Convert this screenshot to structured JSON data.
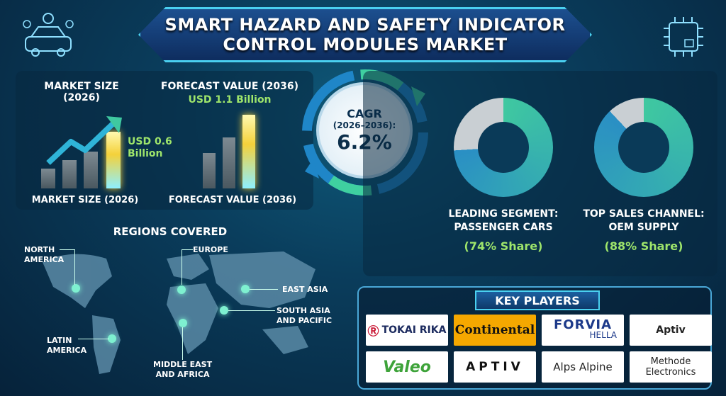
{
  "title": {
    "line1": "SMART HAZARD AND SAFETY INDICATOR",
    "line2": "CONTROL MODULES MARKET"
  },
  "market_size": {
    "heading": "MARKET SIZE",
    "year": "(2026)",
    "value": "USD 0.6",
    "value2": "Billion",
    "axis_label": "MARKET SIZE (2026)"
  },
  "forecast": {
    "heading": "FORECAST VALUE (2036)",
    "value": "USD 1.1 Billion",
    "axis_label": "FORECAST VALUE (2036)"
  },
  "cagr": {
    "label": "CAGR",
    "period": "(2026–2036):",
    "value": "6.2%"
  },
  "segment": {
    "line1": "LEADING SEGMENT:",
    "line2": "PASSENGER CARS",
    "share": "(74% Share)",
    "percent": 74
  },
  "channel": {
    "line1": "TOP SALES CHANNEL:",
    "line2": "OEM SUPPLY",
    "share": "(88% Share)",
    "percent": 88
  },
  "regions": {
    "heading": "REGIONS COVERED",
    "north_america": [
      "NORTH",
      "AMERICA"
    ],
    "europe": "EUROPE",
    "east_asia": "EAST ASIA",
    "south_asia": [
      "SOUTH ASIA",
      "AND PACIFIC"
    ],
    "latin_america": [
      "LATIN",
      "AMERICA"
    ],
    "mea": [
      "MIDDLE EAST",
      "AND AFRICA"
    ]
  },
  "key_players": {
    "heading": "KEY PLAYERS",
    "logos": [
      "TOKAI RIKA",
      "Continental",
      "FORVIA",
      "HELLA",
      "Aptiv",
      "Valeo",
      "APTIV",
      "Alps Alpine",
      "Methode",
      "Electronics"
    ]
  },
  "colors": {
    "accent": "#4ad0f0",
    "green": "#9ee56b",
    "donut_a": "#2a8fc4",
    "donut_b": "#3fc8a0",
    "donut_rest": "#c9cfd3"
  }
}
